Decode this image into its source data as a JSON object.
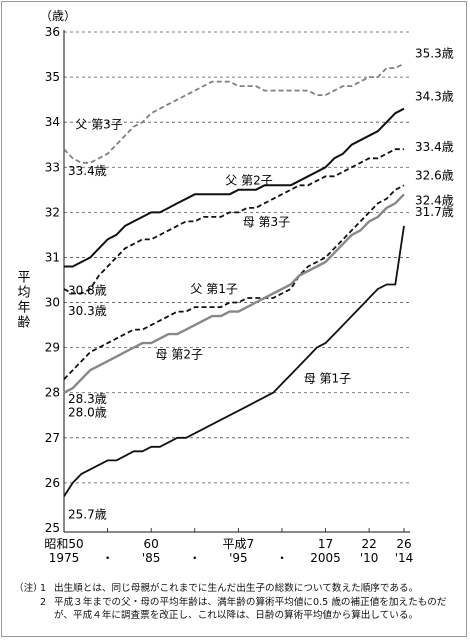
{
  "chart_data": {
    "type": "line",
    "unit_label": "（歳）",
    "ylabel": "平均年齢",
    "ylim": [
      25,
      36
    ],
    "yticks": [
      25,
      26,
      27,
      28,
      29,
      30,
      31,
      32,
      33,
      34,
      35,
      36
    ],
    "grid": "horizontal dashed",
    "xlim": [
      1975,
      2014
    ],
    "x_ticks": [
      {
        "x": 1975,
        "top": "昭和50",
        "bottom": "1975"
      },
      {
        "x": 1980,
        "top": "",
        "bottom": "・"
      },
      {
        "x": 1985,
        "top": "60",
        "bottom": "'85"
      },
      {
        "x": 1990,
        "top": "",
        "bottom": "・"
      },
      {
        "x": 1995,
        "top": "平成7",
        "bottom": "'95"
      },
      {
        "x": 2000,
        "top": "",
        "bottom": "・"
      },
      {
        "x": 2005,
        "top": "17",
        "bottom": "2005"
      },
      {
        "x": 2010,
        "top": "22",
        "bottom": "'10"
      },
      {
        "x": 2014,
        "top": "26",
        "bottom": "'14"
      }
    ],
    "x": [
      1975,
      1976,
      1977,
      1978,
      1979,
      1980,
      1981,
      1982,
      1983,
      1984,
      1985,
      1986,
      1987,
      1988,
      1989,
      1990,
      1991,
      1992,
      1993,
      1994,
      1995,
      1996,
      1997,
      1998,
      1999,
      2000,
      2001,
      2002,
      2003,
      2004,
      2005,
      2006,
      2007,
      2008,
      2009,
      2010,
      2011,
      2012,
      2013,
      2014
    ],
    "series": [
      {
        "name": "父 第3子",
        "color": "#808080",
        "dash": "5,3",
        "width": 1.8,
        "values": [
          33.4,
          33.2,
          33.1,
          33.1,
          33.2,
          33.3,
          33.5,
          33.7,
          33.9,
          34.0,
          34.2,
          34.3,
          34.4,
          34.5,
          34.6,
          34.7,
          34.8,
          34.9,
          34.9,
          34.9,
          34.8,
          34.8,
          34.8,
          34.7,
          34.7,
          34.7,
          34.7,
          34.7,
          34.7,
          34.6,
          34.6,
          34.7,
          34.8,
          34.8,
          34.9,
          35.0,
          35.0,
          35.2,
          35.2,
          35.3
        ]
      },
      {
        "name": "父 第2子",
        "color": "#111111",
        "dash": "",
        "width": 2.0,
        "values": [
          30.8,
          30.8,
          30.9,
          31.0,
          31.2,
          31.4,
          31.5,
          31.7,
          31.8,
          31.9,
          32.0,
          32.0,
          32.1,
          32.2,
          32.3,
          32.4,
          32.4,
          32.4,
          32.4,
          32.4,
          32.5,
          32.5,
          32.5,
          32.6,
          32.6,
          32.6,
          32.6,
          32.7,
          32.8,
          32.9,
          33.0,
          33.2,
          33.3,
          33.5,
          33.6,
          33.7,
          33.8,
          34.0,
          34.2,
          34.3
        ]
      },
      {
        "name": "母 第3子",
        "color": "#111111",
        "dash": "5,3",
        "width": 1.8,
        "values": [
          30.3,
          30.2,
          30.2,
          30.3,
          30.6,
          30.8,
          31.0,
          31.2,
          31.3,
          31.4,
          31.4,
          31.5,
          31.6,
          31.7,
          31.8,
          31.8,
          31.9,
          31.9,
          31.9,
          32.0,
          32.0,
          32.1,
          32.1,
          32.2,
          32.3,
          32.4,
          32.5,
          32.6,
          32.6,
          32.7,
          32.8,
          32.8,
          32.9,
          33.0,
          33.1,
          33.2,
          33.2,
          33.3,
          33.4,
          33.4
        ]
      },
      {
        "name": "父 第1子",
        "color": "#111111",
        "dash": "5,3",
        "width": 1.8,
        "values": [
          28.3,
          28.5,
          28.7,
          28.9,
          29.0,
          29.1,
          29.2,
          29.3,
          29.4,
          29.4,
          29.5,
          29.6,
          29.7,
          29.8,
          29.8,
          29.9,
          29.9,
          29.9,
          29.9,
          30.0,
          30.0,
          30.1,
          30.1,
          30.1,
          30.1,
          30.2,
          30.3,
          30.6,
          30.8,
          30.9,
          31.0,
          31.2,
          31.4,
          31.6,
          31.8,
          32.0,
          32.2,
          32.3,
          32.5,
          32.6
        ]
      },
      {
        "name": "母 第2子",
        "color": "#888888",
        "dash": "",
        "width": 2.4,
        "values": [
          28.0,
          28.1,
          28.3,
          28.5,
          28.6,
          28.7,
          28.8,
          28.9,
          29.0,
          29.1,
          29.1,
          29.2,
          29.3,
          29.3,
          29.4,
          29.5,
          29.6,
          29.7,
          29.7,
          29.8,
          29.8,
          29.9,
          30.0,
          30.1,
          30.2,
          30.3,
          30.4,
          30.6,
          30.7,
          30.8,
          30.9,
          31.1,
          31.3,
          31.5,
          31.6,
          31.8,
          31.9,
          32.1,
          32.2,
          32.4
        ]
      },
      {
        "name": "母 第1子",
        "color": "#111111",
        "dash": "",
        "width": 1.8,
        "values": [
          25.7,
          26.0,
          26.2,
          26.3,
          26.4,
          26.5,
          26.5,
          26.6,
          26.7,
          26.7,
          26.8,
          26.8,
          26.9,
          27.0,
          27.0,
          27.1,
          27.2,
          27.3,
          27.4,
          27.5,
          27.6,
          27.7,
          27.8,
          27.9,
          28.0,
          28.2,
          28.4,
          28.6,
          28.8,
          29.0,
          29.1,
          29.3,
          29.5,
          29.7,
          29.9,
          30.1,
          30.3,
          30.4,
          30.4,
          31.7
        ]
      }
    ],
    "series_labels": [
      {
        "text": "父 第3子",
        "series": 0
      },
      {
        "text": "父 第2子",
        "series": 1
      },
      {
        "text": "母 第3子",
        "series": 2
      },
      {
        "text": "父 第1子",
        "series": 3
      },
      {
        "text": "母 第2子",
        "series": 4
      },
      {
        "text": "母 第1子",
        "series": 5
      }
    ],
    "start_labels": [
      "33.4歳",
      "30.8歳",
      "30.3歳",
      "28.3歳",
      "28.0歳",
      "25.7歳"
    ],
    "end_labels": [
      "35.3歳",
      "34.3歳",
      "33.4歳",
      "32.6歳",
      "32.4歳",
      "31.7歳"
    ]
  },
  "notes": {
    "prefix": "（注）",
    "items": [
      {
        "num": "1",
        "text": "出生順とは、同じ母親がこれまでに生んだ出生子の総数について数えた順序である。"
      },
      {
        "num": "2",
        "text": "平成３年までの父・母の平均年齢は、満年齢の算術平均値に0.5 歳の補正値を加えたものだが、平成４年に調査票を改正し、これ以降は、日齢の算術平均値から算出している。"
      }
    ]
  }
}
